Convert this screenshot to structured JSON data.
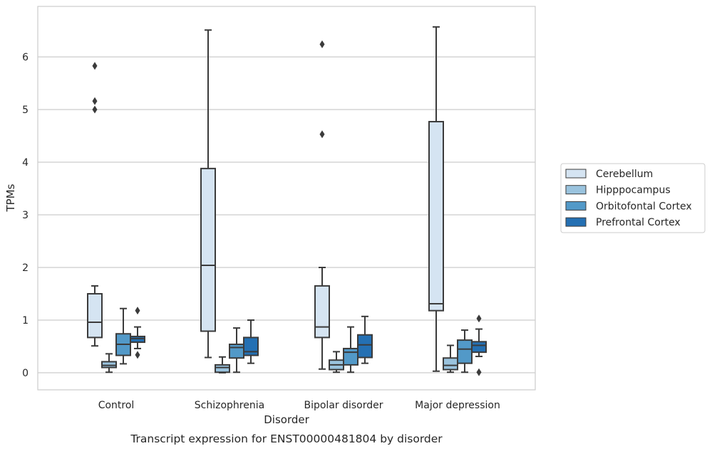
{
  "chart_data": {
    "type": "box",
    "caption": "Transcript expression for ENST00000481804 by disorder",
    "xlabel": "Disorder",
    "ylabel": "TPMs",
    "ylim": [
      -0.32,
      6.9
    ],
    "yticks": [
      0,
      1,
      2,
      3,
      4,
      5,
      6
    ],
    "grid": true,
    "legend_position": "right",
    "categories": [
      "Control",
      "Schizophrenia",
      "Bipolar disorder",
      "Major depression"
    ],
    "series": [
      {
        "name": "Cerebellum",
        "color": "#d5e4f2",
        "boxes": [
          {
            "whisker_low": 0.51,
            "q1": 0.67,
            "median": 0.96,
            "q3": 1.5,
            "whisker_high": 1.65,
            "outliers": [
              5.0,
              5.16,
              5.83
            ]
          },
          {
            "whisker_low": 0.29,
            "q1": 0.79,
            "median": 2.04,
            "q3": 3.88,
            "whisker_high": 6.51,
            "outliers": []
          },
          {
            "whisker_low": 0.07,
            "q1": 0.67,
            "median": 0.87,
            "q3": 1.65,
            "whisker_high": 2.0,
            "outliers": [
              4.53,
              6.24
            ]
          },
          {
            "whisker_low": 0.03,
            "q1": 1.18,
            "median": 1.31,
            "q3": 4.77,
            "whisker_high": 6.57,
            "outliers": []
          }
        ]
      },
      {
        "name": "Hipppocampus",
        "color": "#9ac3de",
        "boxes": [
          {
            "whisker_low": 0.01,
            "q1": 0.1,
            "median": 0.14,
            "q3": 0.21,
            "whisker_high": 0.36,
            "outliers": []
          },
          {
            "whisker_low": 0.0,
            "q1": 0.01,
            "median": 0.1,
            "q3": 0.15,
            "whisker_high": 0.3,
            "outliers": []
          },
          {
            "whisker_low": 0.01,
            "q1": 0.06,
            "median": 0.15,
            "q3": 0.24,
            "whisker_high": 0.4,
            "outliers": []
          },
          {
            "whisker_low": 0.01,
            "q1": 0.06,
            "median": 0.14,
            "q3": 0.28,
            "whisker_high": 0.52,
            "outliers": []
          }
        ]
      },
      {
        "name": "Orbitofontal Cortex",
        "color": "#5299c8",
        "boxes": [
          {
            "whisker_low": 0.17,
            "q1": 0.33,
            "median": 0.54,
            "q3": 0.74,
            "whisker_high": 1.22,
            "outliers": []
          },
          {
            "whisker_low": 0.01,
            "q1": 0.28,
            "median": 0.48,
            "q3": 0.54,
            "whisker_high": 0.85,
            "outliers": []
          },
          {
            "whisker_low": 0.01,
            "q1": 0.15,
            "median": 0.39,
            "q3": 0.46,
            "whisker_high": 0.87,
            "outliers": []
          },
          {
            "whisker_low": 0.01,
            "q1": 0.18,
            "median": 0.45,
            "q3": 0.62,
            "whisker_high": 0.81,
            "outliers": []
          }
        ]
      },
      {
        "name": "Prefrontal Cortex",
        "color": "#2470b3",
        "boxes": [
          {
            "whisker_low": 0.46,
            "q1": 0.58,
            "median": 0.65,
            "q3": 0.69,
            "whisker_high": 0.87,
            "outliers": [
              0.34,
              1.18
            ]
          },
          {
            "whisker_low": 0.18,
            "q1": 0.33,
            "median": 0.4,
            "q3": 0.67,
            "whisker_high": 1.0,
            "outliers": []
          },
          {
            "whisker_low": 0.18,
            "q1": 0.29,
            "median": 0.53,
            "q3": 0.72,
            "whisker_high": 1.07,
            "outliers": []
          },
          {
            "whisker_low": 0.31,
            "q1": 0.39,
            "median": 0.52,
            "q3": 0.59,
            "whisker_high": 0.83,
            "outliers": [
              0.01,
              1.03
            ]
          }
        ]
      }
    ]
  }
}
